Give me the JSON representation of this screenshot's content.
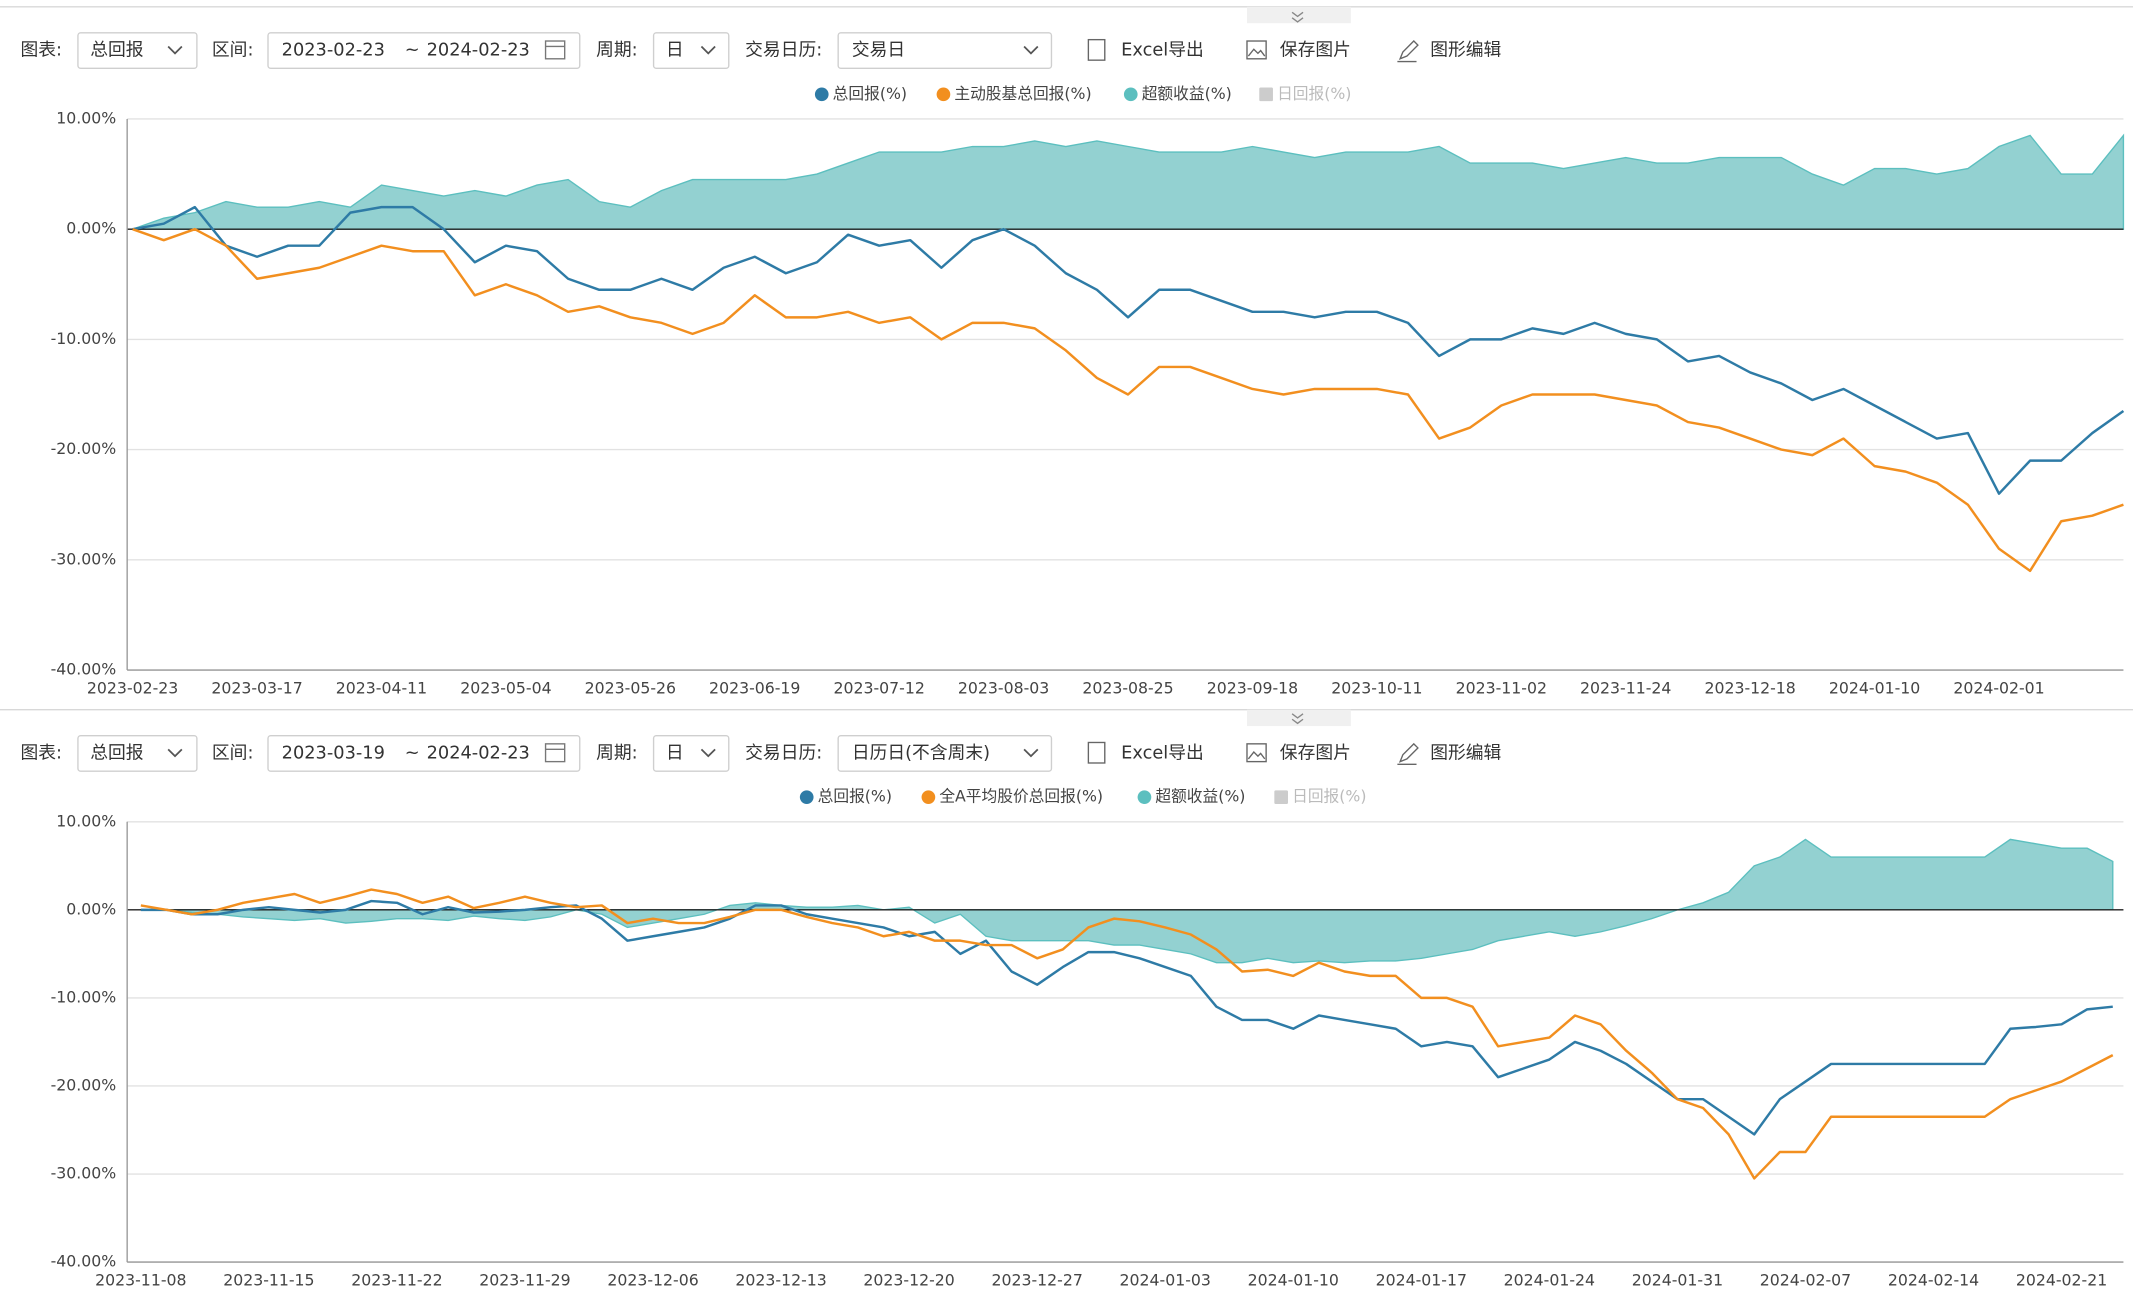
{
  "toolbars": [
    {
      "chart_label": "图表:",
      "chart_value": "总回报",
      "range_label": "区间:",
      "start": "2023-02-23",
      "sep": "~",
      "end": "2024-02-23",
      "period_label": "周期:",
      "period": "日",
      "calendar_label": "交易日历:",
      "calendar": "交易日",
      "export": "Excel导出",
      "save": "保存图片",
      "edit": "图形编辑"
    },
    {
      "chart_label": "图表:",
      "chart_value": "总回报",
      "range_label": "区间:",
      "start": "2023-03-19",
      "sep": "~",
      "end": "2024-02-23",
      "period_label": "周期:",
      "period": "日",
      "calendar_label": "交易日历:",
      "calendar": "日历日(不含周末)",
      "export": "Excel导出",
      "save": "保存图片",
      "edit": "图形编辑"
    }
  ],
  "chart_data": [
    {
      "type": "line",
      "categories": [
        "2023-02-23",
        null,
        null,
        null,
        "2023-03-17",
        null,
        null,
        null,
        "2023-04-11",
        null,
        null,
        null,
        "2023-05-04",
        null,
        null,
        null,
        "2023-05-26",
        null,
        null,
        null,
        "2023-06-19",
        null,
        null,
        null,
        "2023-07-12",
        null,
        null,
        null,
        "2023-08-03",
        null,
        null,
        null,
        "2023-08-25",
        null,
        null,
        null,
        "2023-09-18",
        null,
        null,
        null,
        "2023-10-11",
        null,
        null,
        null,
        "2023-11-02",
        null,
        null,
        null,
        "2023-11-24",
        null,
        null,
        null,
        "2023-12-18",
        null,
        null,
        null,
        "2024-01-10",
        null,
        null,
        null,
        "2024-02-01",
        null,
        null,
        null,
        null
      ],
      "series": [
        {
          "name": "总回报(%)",
          "color": "#2e7ba6",
          "values": [
            0,
            0.5,
            2,
            -1.5,
            -2.5,
            -1.5,
            -1.5,
            1.5,
            2,
            2,
            0,
            -3,
            -1.5,
            -2,
            -4.5,
            -5.5,
            -5.5,
            -4.5,
            -5.5,
            -3.5,
            -2.5,
            -4,
            -3,
            -0.5,
            -1.5,
            -1,
            -3.5,
            -1,
            0,
            -1.5,
            -4,
            -5.5,
            -8,
            -5.5,
            -5.5,
            -6.5,
            -7.5,
            -7.5,
            -8,
            -7.5,
            -7.5,
            -8.5,
            -11.5,
            -10,
            -10,
            -9,
            -9.5,
            -8.5,
            -9.5,
            -10,
            -12,
            -11.5,
            -13,
            -14,
            -15.5,
            -14.5,
            -16,
            -17.5,
            -19,
            -18.5,
            -24,
            -21,
            -21,
            -18.5,
            -16.5
          ]
        },
        {
          "name": "主动股基总回报(%)",
          "color": "#f28f1f",
          "values": [
            0,
            -1,
            0,
            -1.5,
            -4.5,
            -4,
            -3.5,
            -2.5,
            -1.5,
            -2,
            -2,
            -6,
            -5,
            -6,
            -7.5,
            -7,
            -8,
            -8.5,
            -9.5,
            -8.5,
            -6,
            -8,
            -8,
            -7.5,
            -8.5,
            -8,
            -10,
            -8.5,
            -8.5,
            -9,
            -11,
            -13.5,
            -15,
            -12.5,
            -12.5,
            -13.5,
            -14.5,
            -15,
            -14.5,
            -14.5,
            -14.5,
            -15,
            -19,
            -18,
            -16,
            -15,
            -15,
            -15,
            -15.5,
            -16,
            -17.5,
            -18,
            -19,
            -20,
            -20.5,
            -19,
            -21.5,
            -22,
            -23,
            -25,
            -29,
            -31,
            -26.5,
            -26,
            -25
          ]
        },
        {
          "name": "超额收益(%)",
          "color": "#5cbfbf",
          "type": "area",
          "values": [
            0,
            1,
            1.5,
            2.5,
            2,
            2,
            2.5,
            2,
            4,
            3.5,
            3,
            3.5,
            3,
            4,
            4.5,
            2.5,
            2,
            3.5,
            4.5,
            4.5,
            4.5,
            4.5,
            5,
            6,
            7,
            7,
            7,
            7.5,
            7.5,
            8,
            7.5,
            8,
            7.5,
            7,
            7,
            7,
            7.5,
            7,
            6.5,
            7,
            7,
            7,
            7.5,
            6,
            6,
            6,
            5.5,
            6,
            6.5,
            6,
            6,
            6.5,
            6.5,
            6.5,
            5,
            4,
            5.5,
            5.5,
            5,
            5.5,
            7.5,
            8.5,
            5,
            5,
            8.5
          ]
        }
      ],
      "legend_disabled": "日回报(%)",
      "ylim": [
        -40,
        10
      ],
      "yticks": [
        {
          "value": 10,
          "label": "10.00%"
        },
        {
          "value": 0,
          "label": "0.00%"
        },
        {
          "value": -10,
          "label": "-10.00%"
        },
        {
          "value": -20,
          "label": "-20.00%"
        },
        {
          "value": -30,
          "label": "-30.00%"
        },
        {
          "value": -40,
          "label": "-40.00%"
        }
      ],
      "grid": true
    },
    {
      "type": "line",
      "categories": [
        "2023-11-08",
        null,
        null,
        null,
        null,
        "2023-11-15",
        null,
        null,
        null,
        null,
        "2023-11-22",
        null,
        null,
        null,
        null,
        "2023-11-29",
        null,
        null,
        null,
        null,
        "2023-12-06",
        null,
        null,
        null,
        null,
        "2023-12-13",
        null,
        null,
        null,
        null,
        "2023-12-20",
        null,
        null,
        null,
        null,
        "2023-12-27",
        null,
        null,
        null,
        null,
        "2024-01-03",
        null,
        null,
        null,
        null,
        "2024-01-10",
        null,
        null,
        null,
        null,
        "2024-01-17",
        null,
        null,
        null,
        null,
        "2024-01-24",
        null,
        null,
        null,
        null,
        "2024-01-31",
        null,
        null,
        null,
        null,
        "2024-02-07",
        null,
        null,
        null,
        null,
        "2024-02-14",
        null,
        null,
        null,
        null,
        "2024-02-21",
        null,
        null
      ],
      "series": [
        {
          "name": "总回报(%)",
          "color": "#2e7ba6",
          "values": [
            0,
            0,
            -0.5,
            -0.5,
            0,
            0.3,
            0,
            -0.3,
            0,
            1,
            0.8,
            -0.5,
            0.3,
            -0.3,
            -0.2,
            0,
            0.3,
            0.5,
            -1,
            -3.5,
            -3,
            -2.5,
            -2,
            -1,
            0.5,
            0.5,
            -0.5,
            -1,
            -1.5,
            -2,
            -3,
            -2.5,
            -5,
            -3.5,
            -7,
            -8.5,
            -6.5,
            -4.8,
            -4.8,
            -5.5,
            -6.5,
            -7.5,
            -11,
            -12.5,
            -12.5,
            -13.5,
            -12,
            -12.5,
            -13,
            -13.5,
            -15.5,
            -15,
            -15.5,
            -19,
            -18,
            -17,
            -15,
            -16,
            -17.5,
            -19.5,
            -21.5,
            -21.5,
            -23.5,
            -25.5,
            -21.5,
            -19.5,
            -17.5,
            -17.5,
            -17.5,
            -17.5,
            -17.5,
            -17.5,
            -17.5,
            -13.5,
            -13.3,
            -13,
            -11.3,
            -11
          ]
        },
        {
          "name": "全A平均股价总回报(%)",
          "color": "#f28f1f",
          "values": [
            0.5,
            0,
            -0.5,
            0,
            0.8,
            1.3,
            1.8,
            0.8,
            1.5,
            2.3,
            1.8,
            0.8,
            1.5,
            0.2,
            0.8,
            1.5,
            0.8,
            0.3,
            0.5,
            -1.5,
            -1,
            -1.5,
            -1.5,
            -0.8,
            0,
            0,
            -0.8,
            -1.5,
            -2,
            -3,
            -2.5,
            -3.5,
            -3.5,
            -4,
            -4,
            -5.5,
            -4.5,
            -2,
            -1,
            -1.3,
            -2,
            -2.8,
            -4.5,
            -7,
            -6.8,
            -7.5,
            -6,
            -7,
            -7.5,
            -7.5,
            -10,
            -10,
            -11,
            -15.5,
            -15,
            -14.5,
            -12,
            -13,
            -16,
            -18.5,
            -21.5,
            -22.5,
            -25.5,
            -30.5,
            -27.5,
            -27.5,
            -23.5,
            -23.5,
            -23.5,
            -23.5,
            -23.5,
            -23.5,
            -23.5,
            -21.5,
            -20.5,
            -19.5,
            -18,
            -16.5
          ]
        },
        {
          "name": "超额收益(%)",
          "color": "#5cbfbf",
          "type": "area",
          "values": [
            0,
            0,
            -0.3,
            -0.5,
            -0.8,
            -1,
            -1.2,
            -1,
            -1.5,
            -1.3,
            -1,
            -1,
            -1.2,
            -0.7,
            -1,
            -1.2,
            -0.8,
            0,
            -0.5,
            -2,
            -1.5,
            -1,
            -0.5,
            0.5,
            0.8,
            0.5,
            0.3,
            0.3,
            0.5,
            0,
            0.3,
            -1.5,
            -0.5,
            -3,
            -3.5,
            -3.5,
            -3.5,
            -3.5,
            -4,
            -4,
            -4.5,
            -5,
            -6,
            -6,
            -5.5,
            -6,
            -5.8,
            -6,
            -5.8,
            -5.8,
            -5.5,
            -5,
            -4.5,
            -3.5,
            -3,
            -2.5,
            -3,
            -2.5,
            -1.8,
            -1,
            0,
            0.8,
            2,
            5,
            6,
            8,
            6,
            6,
            6,
            6,
            6,
            6,
            6,
            8,
            7.5,
            7,
            7,
            5.5
          ]
        }
      ],
      "legend_disabled": "日回报(%)",
      "ylim": [
        -40,
        10
      ],
      "yticks": [
        {
          "value": 10,
          "label": "10.00%"
        },
        {
          "value": 0,
          "label": "0.00%"
        },
        {
          "value": -10,
          "label": "-10.00%"
        },
        {
          "value": -20,
          "label": "-20.00%"
        },
        {
          "value": -30,
          "label": "-30.00%"
        },
        {
          "value": -40,
          "label": "-40.00%"
        }
      ],
      "grid": true
    }
  ]
}
